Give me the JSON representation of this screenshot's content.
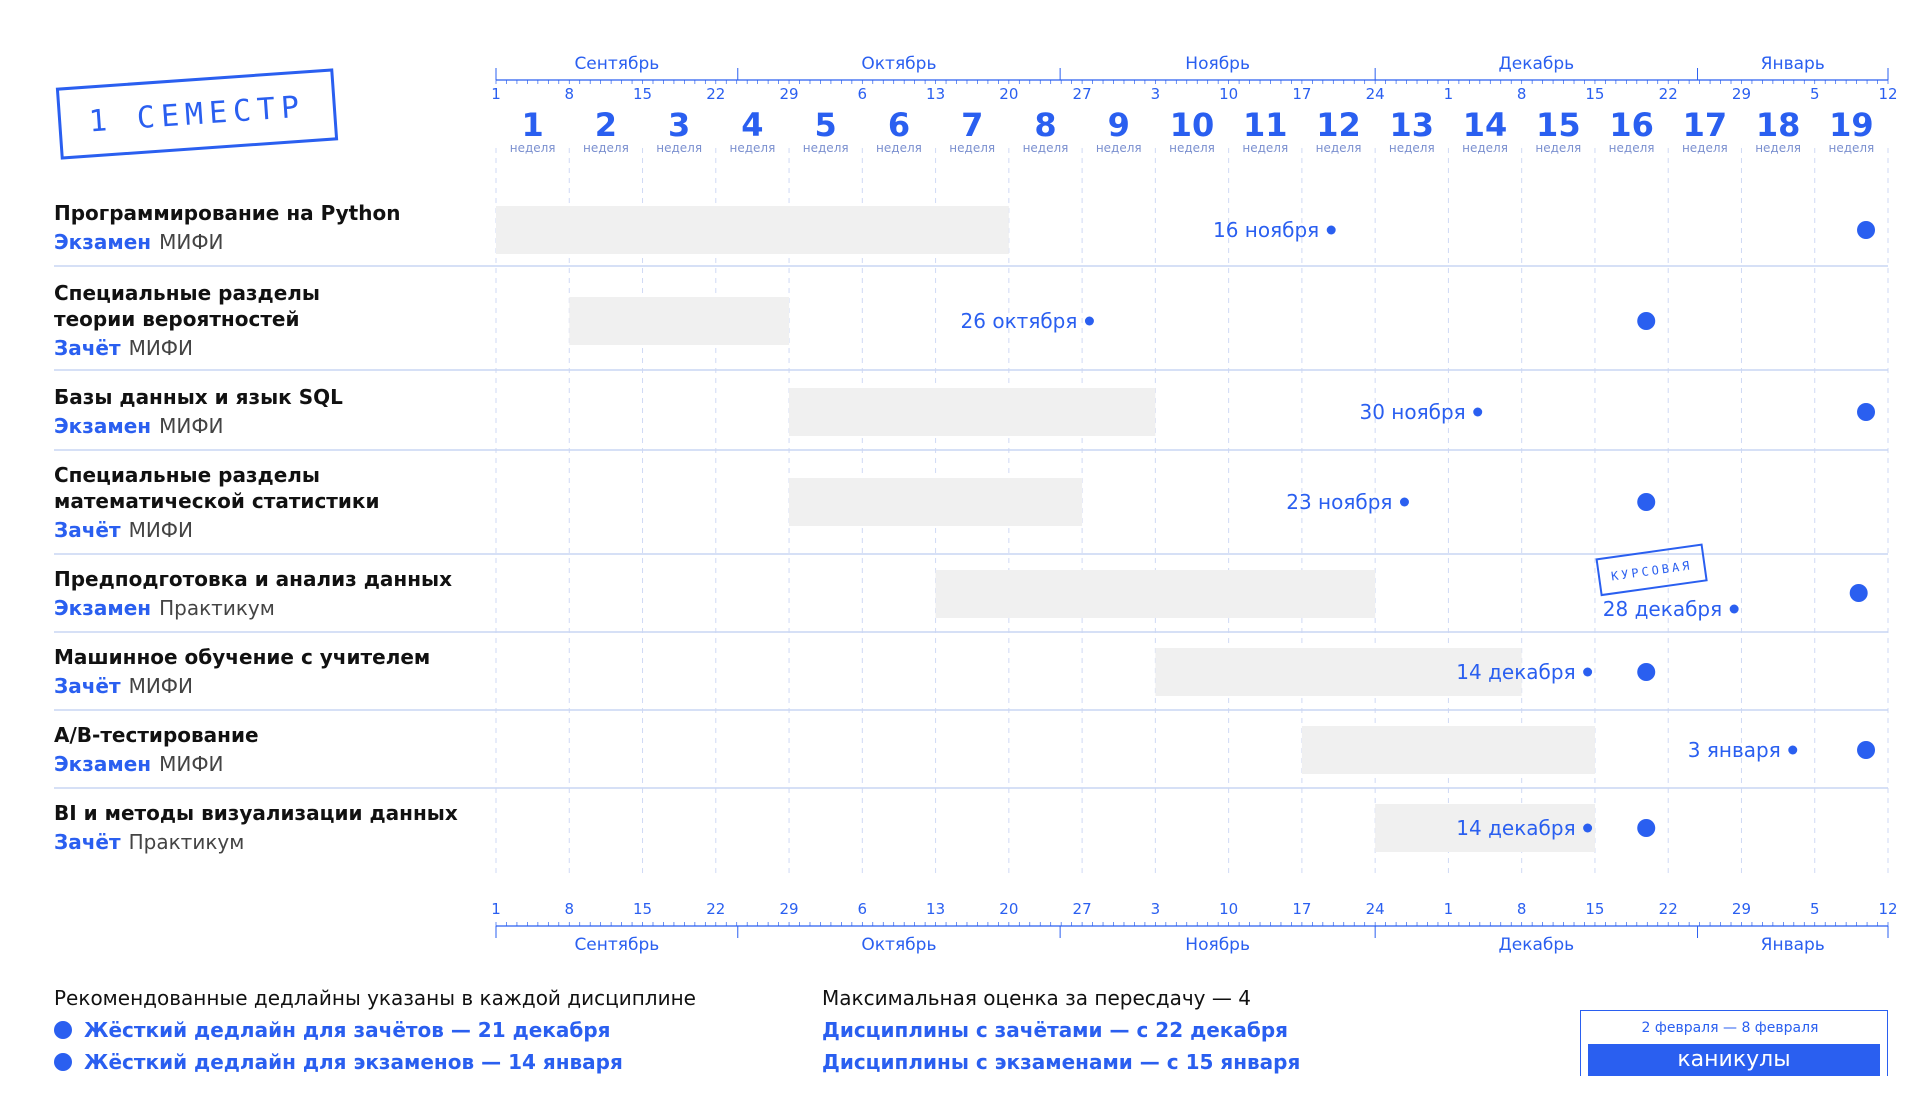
{
  "stamp": "1 СЕМЕСТР",
  "months": [
    "Сентябрь",
    "Октябрь",
    "Ноябрь",
    "Декабрь",
    "Январь"
  ],
  "date_ticks": [
    "1",
    "8",
    "15",
    "22",
    "29",
    "6",
    "13",
    "20",
    "27",
    "3",
    "10",
    "17",
    "24",
    "1",
    "8",
    "15",
    "22",
    "29",
    "5",
    "12"
  ],
  "week_numbers": [
    "1",
    "2",
    "3",
    "4",
    "5",
    "6",
    "7",
    "8",
    "9",
    "10",
    "11",
    "12",
    "13",
    "14",
    "15",
    "16",
    "17",
    "18",
    "19"
  ],
  "week_word": "неделя",
  "rows": [
    {
      "title": "Программирование на Python",
      "type": "Экзамен",
      "org": "МИФИ"
    },
    {
      "title": "Специальные разделы\nтеории вероятностей",
      "type": "Зачёт",
      "org": "МИФИ"
    },
    {
      "title": "Базы данных и язык SQL",
      "type": "Экзамен",
      "org": "МИФИ"
    },
    {
      "title": "Специальные разделы\nматематической статистики",
      "type": "Зачёт",
      "org": "МИФИ"
    },
    {
      "title": "Предподготовка и анализ данных",
      "type": "Экзамен",
      "org": "Практикум"
    },
    {
      "title": "Машинное обучение с учителем",
      "type": "Зачёт",
      "org": "МИФИ"
    },
    {
      "title": "A/B-тестирование",
      "type": "Экзамен",
      "org": "МИФИ"
    },
    {
      "title": "BI и методы визуализации данных",
      "type": "Зачёт",
      "org": "Практикум"
    }
  ],
  "chart_data": {
    "type": "gantt",
    "x_axis": {
      "start_week": 0,
      "end_week": 19,
      "unit": "week"
    },
    "tasks": [
      {
        "start_week": 0,
        "end_week": 7,
        "deadline_label": "16 ноября",
        "deadline_week": 11.4,
        "hard_deadline_week": 18.7
      },
      {
        "start_week": 1,
        "end_week": 4,
        "deadline_label": "26 октября",
        "deadline_week": 8.1,
        "hard_deadline_week": 15.7
      },
      {
        "start_week": 4,
        "end_week": 9,
        "deadline_label": "30 ноября",
        "deadline_week": 13.4,
        "hard_deadline_week": 18.7
      },
      {
        "start_week": 4,
        "end_week": 8,
        "deadline_label": "23 ноября",
        "deadline_week": 12.4,
        "hard_deadline_week": 15.7
      },
      {
        "start_week": 6,
        "end_week": 12,
        "deadline_label": "28 декабря",
        "deadline_week": 16.9,
        "hard_deadline_week": 18.6,
        "stamp": "КУРСОВАЯ"
      },
      {
        "start_week": 9,
        "end_week": 14,
        "deadline_label": "14 декабря",
        "deadline_week": 14.9,
        "hard_deadline_week": 15.7
      },
      {
        "start_week": 11,
        "end_week": 15,
        "deadline_label": "3 января",
        "deadline_week": 17.7,
        "hard_deadline_week": 18.7
      },
      {
        "start_week": 12,
        "end_week": 15,
        "deadline_label": "14 декабря",
        "deadline_week": 14.9,
        "hard_deadline_week": 15.7
      }
    ]
  },
  "legend": {
    "left_title": "Рекомендованные дедлайны указаны в каждой дисциплине",
    "left_items": [
      "Жёсткий дедлайн для зачётов — 21 декабря",
      "Жёсткий дедлайн для экзаменов — 14 января"
    ],
    "right_title": "Максимальная оценка за пересдачу — 4",
    "right_items": [
      "Дисциплины с зачётами — с 22 декабря",
      "Дисциплины с экзаменами — с 15 января"
    ]
  },
  "vacation": {
    "dates": "2 февраля — 8 февраля",
    "label": "каникулы"
  },
  "colors": {
    "accent": "#2a5ff0",
    "bar": "#f0f0f0",
    "grid": "#cfd9f5",
    "divider": "#c9d6f3"
  }
}
